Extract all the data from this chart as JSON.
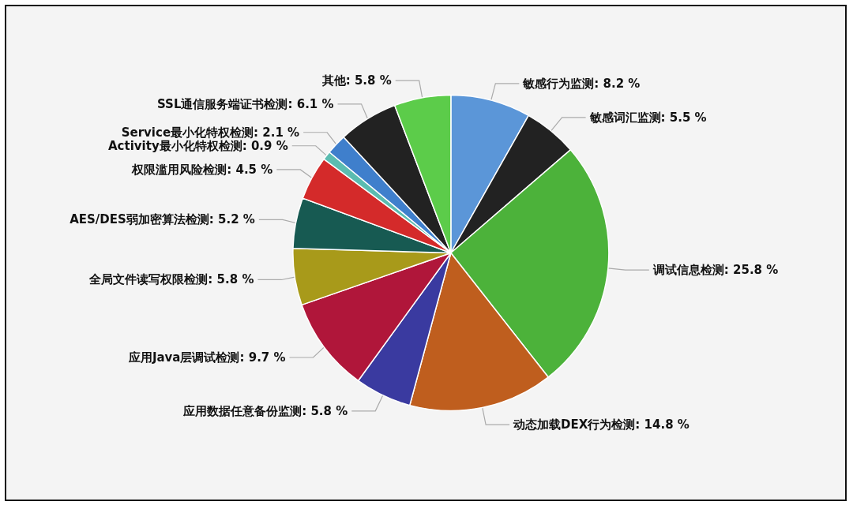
{
  "chart_data": {
    "type": "pie",
    "categories": [
      "敏感行为监测",
      "敏感词汇监测",
      "调试信息检测",
      "动态加载DEX行为检测",
      "应用数据任意备份监测",
      "应用Java层调试检测",
      "全局文件读写权限检测",
      "AES/DES弱加密算法检测",
      "权限滥用风险检测",
      "Activity最小化特权检测",
      "Service最小化特权检测",
      "SSL通信服务端证书检测",
      "其他"
    ],
    "values": [
      8.2,
      5.5,
      25.8,
      14.8,
      5.8,
      9.7,
      5.8,
      5.2,
      4.5,
      0.9,
      2.1,
      6.1,
      5.8
    ],
    "value_labels": [
      "8.2 %",
      "5.5 %",
      "25.8 %",
      "14.8 %",
      "5.8 %",
      "9.7 %",
      "5.8 %",
      "5.2 %",
      "4.5 %",
      "0.9 %",
      "2.1 %",
      "6.1 %",
      "5.8 %"
    ],
    "colors": [
      "#5b96d8",
      "#222222",
      "#4cb23a",
      "#bf5e1e",
      "#3a3aa0",
      "#b0163a",
      "#a89a1a",
      "#175a52",
      "#d42a2a",
      "#5bbcb0",
      "#3f7fcc",
      "#222222",
      "#5ccc4a"
    ],
    "legend": false
  }
}
